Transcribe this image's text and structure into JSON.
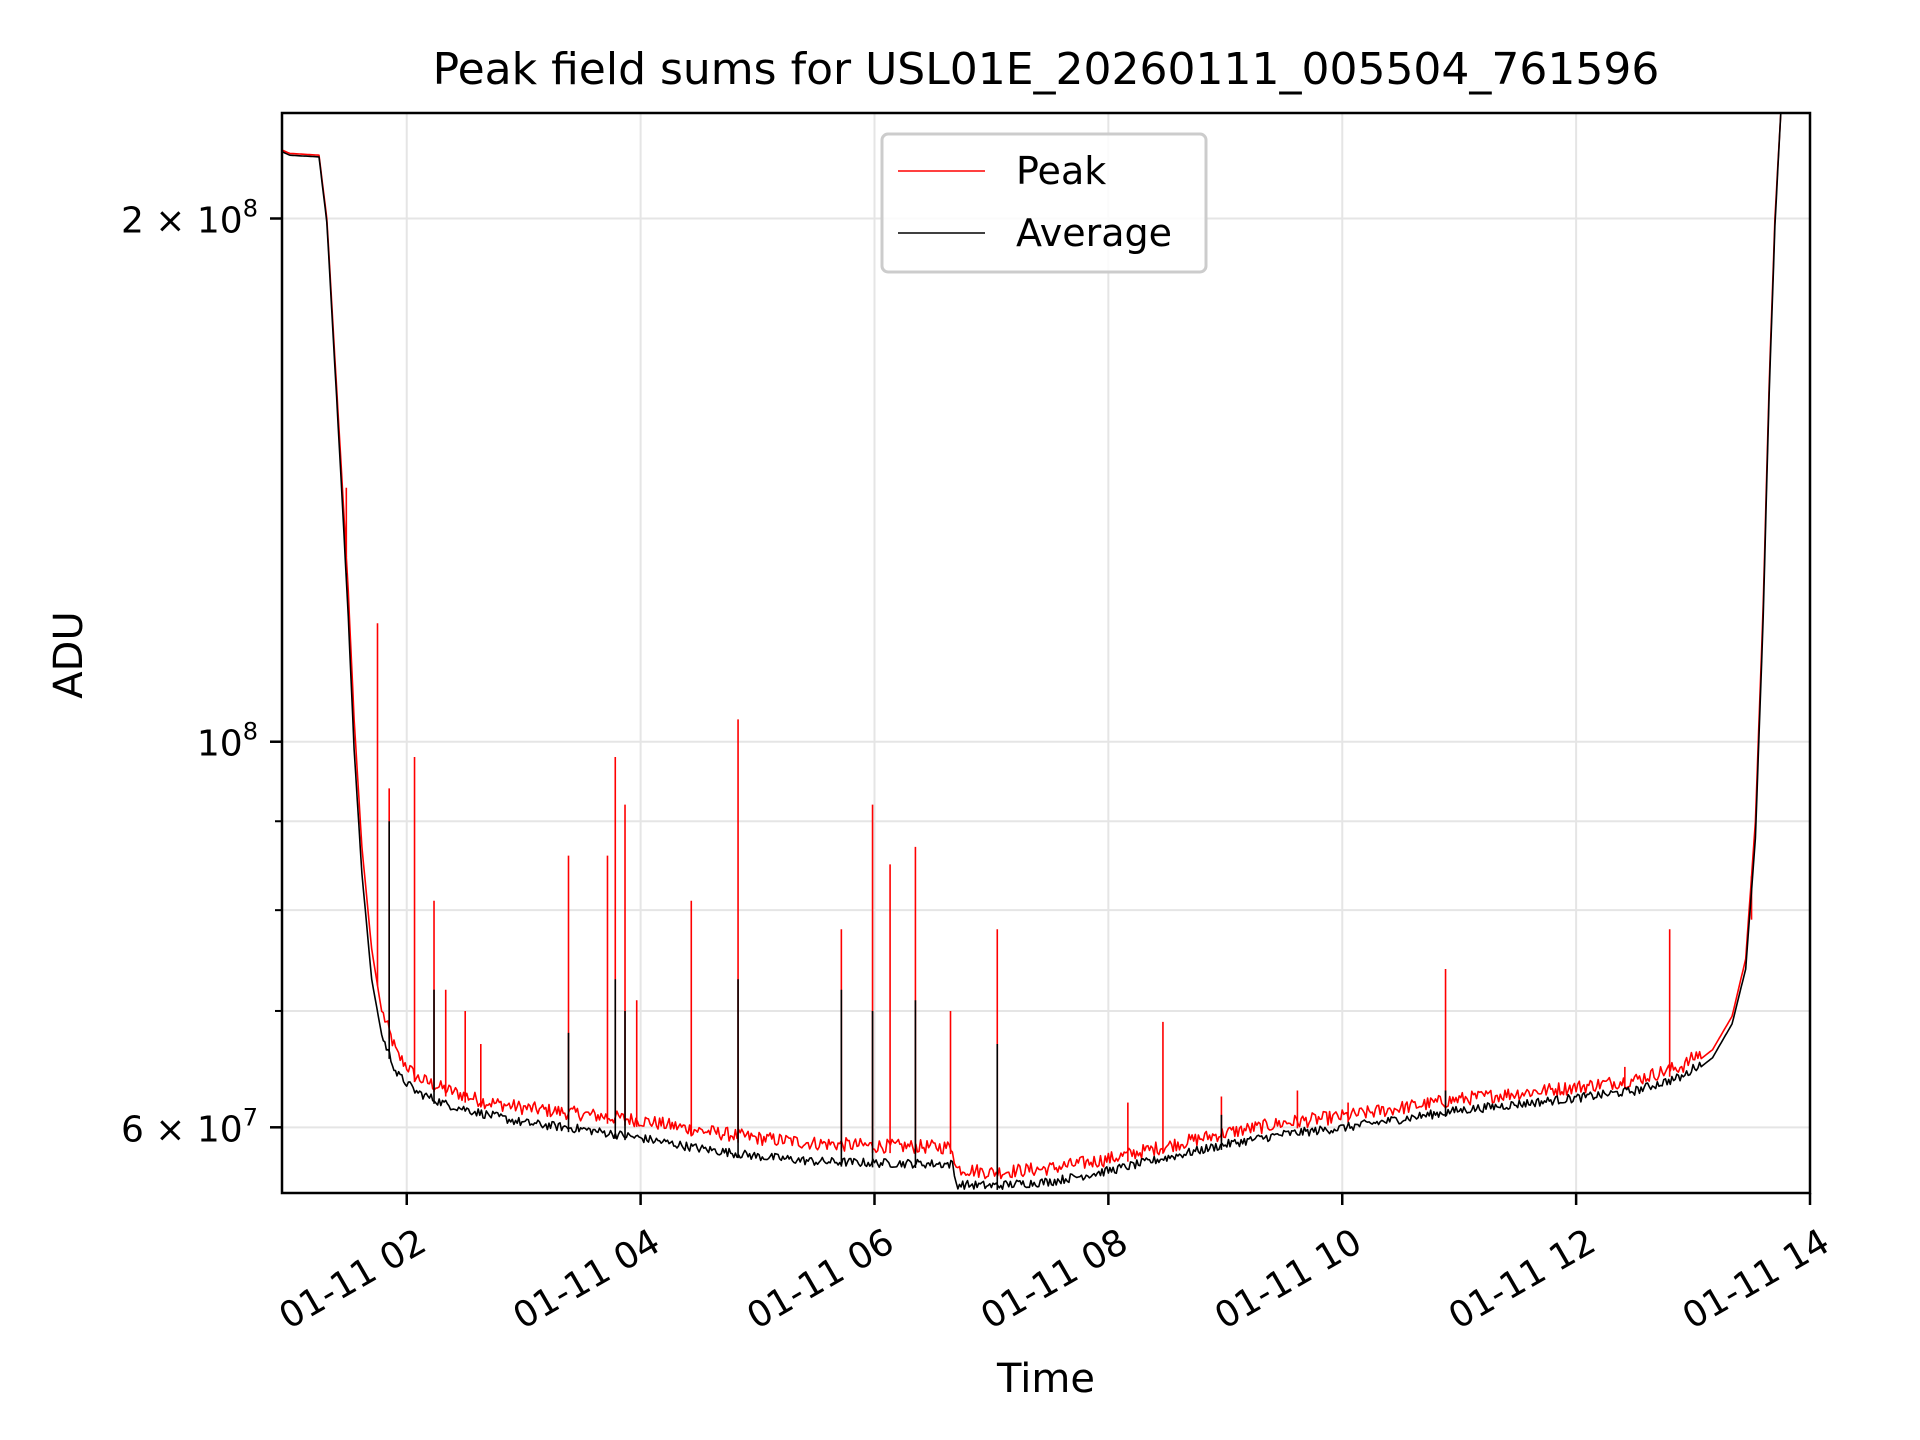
{
  "chart_data": {
    "type": "line",
    "title": "Peak field sums for USL01E_20260111_005504_761596",
    "xlabel": "Time",
    "ylabel": "ADU",
    "yscale": "log",
    "grid": true,
    "legend_position": "top-center",
    "xlim": [
      "2026-01-11 00:56",
      "2026-01-11 14:00"
    ],
    "ylim": [
      55000000,
      230000000
    ],
    "x_ticks": [
      {
        "value": "2026-01-11 02:00",
        "label": "01-11 02"
      },
      {
        "value": "2026-01-11 04:00",
        "label": "01-11 04"
      },
      {
        "value": "2026-01-11 06:00",
        "label": "01-11 06"
      },
      {
        "value": "2026-01-11 08:00",
        "label": "01-11 08"
      },
      {
        "value": "2026-01-11 10:00",
        "label": "01-11 10"
      },
      {
        "value": "2026-01-11 12:00",
        "label": "01-11 12"
      },
      {
        "value": "2026-01-11 14:00",
        "label": "01-11 14"
      }
    ],
    "y_ticks_major": [
      {
        "value": 60000000,
        "label_mantissa": "6",
        "label_base": "10",
        "label_exp": "7"
      },
      {
        "value": 100000000,
        "label_mantissa": "",
        "label_base": "10",
        "label_exp": "8"
      },
      {
        "value": 200000000,
        "label_mantissa": "2",
        "label_base": "10",
        "label_exp": "8"
      }
    ],
    "y_ticks_minor": [
      70000000,
      80000000,
      90000000
    ],
    "series": [
      {
        "name": "Peak",
        "color": "#ff0000",
        "points": [
          [
            "2026-01-11 00:56",
            219000000
          ],
          [
            "2026-01-11 01:00",
            218000000
          ],
          [
            "2026-01-11 01:15",
            217500000
          ],
          [
            "2026-01-11 01:19",
            200000000
          ],
          [
            "2026-01-11 01:24",
            160000000
          ],
          [
            "2026-01-11 01:27",
            140000000
          ],
          [
            "2026-01-11 01:30",
            122000000
          ],
          [
            "2026-01-11 01:33",
            103000000
          ],
          [
            "2026-01-11 01:37",
            87000000
          ],
          [
            "2026-01-11 01:42",
            76000000
          ],
          [
            "2026-01-11 01:48",
            69000000
          ],
          [
            "2026-01-11 01:55",
            65500000
          ],
          [
            "2026-01-11 02:05",
            63500000
          ],
          [
            "2026-01-11 02:20",
            62500000
          ],
          [
            "2026-01-11 02:40",
            61500000
          ],
          [
            "2026-01-11 03:00",
            61000000
          ],
          [
            "2026-01-11 03:30",
            60500000
          ],
          [
            "2026-01-11 04:00",
            60000000
          ],
          [
            "2026-01-11 04:30",
            59200000
          ],
          [
            "2026-01-11 05:00",
            58600000
          ],
          [
            "2026-01-11 05:30",
            58200000
          ],
          [
            "2026-01-11 06:00",
            58000000
          ],
          [
            "2026-01-11 06:40",
            57900000
          ],
          [
            "2026-01-11 06:42",
            56300000
          ],
          [
            "2026-01-11 07:00",
            56000000
          ],
          [
            "2026-01-11 07:30",
            56300000
          ],
          [
            "2026-01-11 08:00",
            57000000
          ],
          [
            "2026-01-11 08:30",
            58000000
          ],
          [
            "2026-01-11 09:00",
            59000000
          ],
          [
            "2026-01-11 09:30",
            59800000
          ],
          [
            "2026-01-11 10:00",
            60300000
          ],
          [
            "2026-01-11 10:30",
            61000000
          ],
          [
            "2026-01-11 11:00",
            61700000
          ],
          [
            "2026-01-11 11:30",
            62200000
          ],
          [
            "2026-01-11 12:00",
            62700000
          ],
          [
            "2026-01-11 12:30",
            63300000
          ],
          [
            "2026-01-11 12:55",
            64500000
          ],
          [
            "2026-01-11 13:10",
            66500000
          ],
          [
            "2026-01-11 13:20",
            69500000
          ],
          [
            "2026-01-11 13:27",
            75000000
          ],
          [
            "2026-01-11 13:32",
            90000000
          ],
          [
            "2026-01-11 13:36",
            120000000
          ],
          [
            "2026-01-11 13:39",
            160000000
          ],
          [
            "2026-01-11 13:42",
            200000000
          ],
          [
            "2026-01-11 13:45",
            230000000
          ]
        ],
        "spikes": [
          [
            "2026-01-11 01:29",
            140000000
          ],
          [
            "2026-01-11 01:45",
            117000000
          ],
          [
            "2026-01-11 01:51",
            94000000
          ],
          [
            "2026-01-11 02:04",
            98000000
          ],
          [
            "2026-01-11 02:14",
            81000000
          ],
          [
            "2026-01-11 02:20",
            72000000
          ],
          [
            "2026-01-11 02:30",
            70000000
          ],
          [
            "2026-01-11 02:38",
            67000000
          ],
          [
            "2026-01-11 03:23",
            86000000
          ],
          [
            "2026-01-11 03:43",
            86000000
          ],
          [
            "2026-01-11 03:47",
            98000000
          ],
          [
            "2026-01-11 03:52",
            92000000
          ],
          [
            "2026-01-11 03:58",
            71000000
          ],
          [
            "2026-01-11 04:26",
            81000000
          ],
          [
            "2026-01-11 04:50",
            103000000
          ],
          [
            "2026-01-11 05:43",
            78000000
          ],
          [
            "2026-01-11 05:59",
            92000000
          ],
          [
            "2026-01-11 06:08",
            85000000
          ],
          [
            "2026-01-11 06:21",
            87000000
          ],
          [
            "2026-01-11 06:39",
            70000000
          ],
          [
            "2026-01-11 07:03",
            78000000
          ],
          [
            "2026-01-11 08:10",
            62000000
          ],
          [
            "2026-01-11 08:28",
            69000000
          ],
          [
            "2026-01-11 08:58",
            62500000
          ],
          [
            "2026-01-11 09:37",
            63000000
          ],
          [
            "2026-01-11 10:03",
            62000000
          ],
          [
            "2026-01-11 10:53",
            74000000
          ],
          [
            "2026-01-11 12:25",
            65000000
          ],
          [
            "2026-01-11 12:48",
            78000000
          ],
          [
            "2026-01-11 13:30",
            79000000
          ]
        ]
      },
      {
        "name": "Average",
        "color": "#000000",
        "points": [
          [
            "2026-01-11 00:56",
            218500000
          ],
          [
            "2026-01-11 01:00",
            217500000
          ],
          [
            "2026-01-11 01:15",
            217000000
          ],
          [
            "2026-01-11 01:19",
            199000000
          ],
          [
            "2026-01-11 01:24",
            158000000
          ],
          [
            "2026-01-11 01:27",
            137000000
          ],
          [
            "2026-01-11 01:30",
            118000000
          ],
          [
            "2026-01-11 01:33",
            99000000
          ],
          [
            "2026-01-11 01:37",
            84000000
          ],
          [
            "2026-01-11 01:42",
            73000000
          ],
          [
            "2026-01-11 01:48",
            67000000
          ],
          [
            "2026-01-11 01:55",
            64000000
          ],
          [
            "2026-01-11 02:05",
            62500000
          ],
          [
            "2026-01-11 02:20",
            61500000
          ],
          [
            "2026-01-11 02:40",
            60700000
          ],
          [
            "2026-01-11 03:00",
            60000000
          ],
          [
            "2026-01-11 03:30",
            59500000
          ],
          [
            "2026-01-11 04:00",
            58800000
          ],
          [
            "2026-01-11 04:30",
            58000000
          ],
          [
            "2026-01-11 05:00",
            57400000
          ],
          [
            "2026-01-11 05:30",
            57000000
          ],
          [
            "2026-01-11 06:00",
            56900000
          ],
          [
            "2026-01-11 06:40",
            56800000
          ],
          [
            "2026-01-11 06:42",
            55300000
          ],
          [
            "2026-01-11 07:00",
            55200000
          ],
          [
            "2026-01-11 07:30",
            55500000
          ],
          [
            "2026-01-11 08:00",
            56300000
          ],
          [
            "2026-01-11 08:30",
            57300000
          ],
          [
            "2026-01-11 09:00",
            58300000
          ],
          [
            "2026-01-11 09:30",
            59100000
          ],
          [
            "2026-01-11 10:00",
            59600000
          ],
          [
            "2026-01-11 10:30",
            60300000
          ],
          [
            "2026-01-11 11:00",
            61000000
          ],
          [
            "2026-01-11 11:30",
            61500000
          ],
          [
            "2026-01-11 12:00",
            62000000
          ],
          [
            "2026-01-11 12:30",
            62600000
          ],
          [
            "2026-01-11 12:55",
            63800000
          ],
          [
            "2026-01-11 13:10",
            65800000
          ],
          [
            "2026-01-11 13:20",
            68800000
          ],
          [
            "2026-01-11 13:27",
            74000000
          ],
          [
            "2026-01-11 13:32",
            88000000
          ],
          [
            "2026-01-11 13:36",
            118000000
          ],
          [
            "2026-01-11 13:39",
            158000000
          ],
          [
            "2026-01-11 13:42",
            198000000
          ],
          [
            "2026-01-11 13:45",
            230000000
          ]
        ],
        "spikes": [
          [
            "2026-01-11 01:29",
            125000000
          ],
          [
            "2026-01-11 01:51",
            90000000
          ],
          [
            "2026-01-11 02:14",
            72000000
          ],
          [
            "2026-01-11 03:23",
            68000000
          ],
          [
            "2026-01-11 03:47",
            73000000
          ],
          [
            "2026-01-11 03:52",
            70000000
          ],
          [
            "2026-01-11 04:50",
            73000000
          ],
          [
            "2026-01-11 05:43",
            72000000
          ],
          [
            "2026-01-11 05:59",
            70000000
          ],
          [
            "2026-01-11 06:21",
            71000000
          ],
          [
            "2026-01-11 07:03",
            67000000
          ],
          [
            "2026-01-11 08:58",
            61000000
          ],
          [
            "2026-01-11 10:53",
            63000000
          ]
        ]
      }
    ]
  }
}
